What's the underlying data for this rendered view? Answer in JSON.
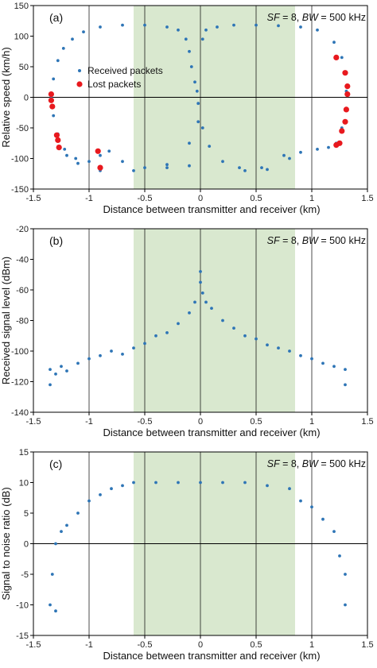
{
  "colors": {
    "received": "#2E75B6",
    "lost": "#E8191E",
    "shade": "#D9E8CF",
    "axis": "#000000",
    "grid": "#000000"
  },
  "chart_data": [
    {
      "type": "scatter",
      "panel_label": "(a)",
      "annotation": {
        "sf_var": "SF",
        "sf_rest": " = 8, ",
        "bw_var": "BW",
        "bw_rest": " = 500 kHz"
      },
      "xlabel": "Distance between transmitter and receiver (km)",
      "ylabel": "Relative speed (km/h)",
      "xlim": [
        -1.5,
        1.5
      ],
      "ylim": [
        -150,
        150
      ],
      "xticks": [
        -1.5,
        -1,
        -0.5,
        0,
        0.5,
        1,
        1.5
      ],
      "xtick_labels": [
        "-1.5",
        "-1",
        "-0.5",
        "0",
        "0.5",
        "1",
        "1.5"
      ],
      "yticks": [
        -150,
        -100,
        -50,
        0,
        50,
        100,
        150
      ],
      "ytick_labels": [
        "-150",
        "-100",
        "-50",
        "0",
        "50",
        "100",
        "150"
      ],
      "shaded_x": [
        -0.6,
        0.85
      ],
      "legend": {
        "placement": "left",
        "entries": [
          "Received packets",
          "Lost packets"
        ]
      },
      "series": [
        {
          "name": "Received packets",
          "marker": "small-dot",
          "points": [
            [
              -0.02,
              -10
            ],
            [
              -0.03,
              10
            ],
            [
              -0.05,
              25
            ],
            [
              -0.08,
              50
            ],
            [
              -0.1,
              75
            ],
            [
              -0.13,
              95
            ],
            [
              -0.2,
              110
            ],
            [
              -0.3,
              115
            ],
            [
              -0.5,
              118
            ],
            [
              -0.7,
              118
            ],
            [
              -0.9,
              115
            ],
            [
              -1.05,
              107
            ],
            [
              -1.15,
              95
            ],
            [
              -1.23,
              80
            ],
            [
              -1.28,
              60
            ],
            [
              -1.32,
              30
            ],
            [
              -1.34,
              0
            ],
            [
              -1.32,
              -30
            ],
            [
              -1.28,
              -60
            ],
            [
              -1.22,
              -85
            ],
            [
              -1.12,
              -100
            ],
            [
              -1.0,
              -105
            ],
            [
              -0.9,
              -95
            ],
            [
              -0.82,
              -88
            ],
            [
              -0.7,
              -105
            ],
            [
              -0.5,
              -115
            ],
            [
              -0.3,
              -115
            ],
            [
              -0.1,
              -112
            ],
            [
              0.02,
              -50
            ],
            [
              0.08,
              -80
            ],
            [
              0.2,
              -105
            ],
            [
              0.35,
              -115
            ],
            [
              0.55,
              -115
            ],
            [
              0.75,
              -95
            ],
            [
              0.9,
              -90
            ],
            [
              1.05,
              -85
            ],
            [
              1.15,
              -82
            ],
            [
              1.22,
              -75
            ],
            [
              1.27,
              -50
            ],
            [
              1.3,
              -20
            ],
            [
              1.31,
              10
            ],
            [
              1.3,
              40
            ],
            [
              1.27,
              65
            ],
            [
              1.2,
              90
            ],
            [
              1.05,
              110
            ],
            [
              0.9,
              115
            ],
            [
              0.7,
              117
            ],
            [
              0.5,
              118
            ],
            [
              0.3,
              118
            ],
            [
              0.15,
              115
            ],
            [
              0.05,
              110
            ],
            [
              0.02,
              95
            ],
            [
              -0.02,
              -40
            ],
            [
              -0.1,
              -75
            ],
            [
              -0.3,
              -110
            ],
            [
              -0.6,
              -120
            ],
            [
              -0.9,
              -120
            ],
            [
              -1.1,
              -108
            ],
            [
              -1.2,
              -95
            ],
            [
              0.4,
              -120
            ],
            [
              0.6,
              -118
            ],
            [
              0.8,
              -100
            ]
          ]
        },
        {
          "name": "Lost packets",
          "marker": "big-dot",
          "points": [
            [
              -1.34,
              5
            ],
            [
              -1.34,
              -5
            ],
            [
              -1.33,
              -15
            ],
            [
              -1.29,
              -62
            ],
            [
              -1.28,
              -70
            ],
            [
              -1.27,
              -82
            ],
            [
              -0.92,
              -88
            ],
            [
              -0.9,
              -115
            ],
            [
              1.22,
              65
            ],
            [
              1.3,
              40
            ],
            [
              1.32,
              18
            ],
            [
              1.32,
              5
            ],
            [
              1.31,
              -20
            ],
            [
              1.3,
              -40
            ],
            [
              1.27,
              -55
            ],
            [
              1.25,
              -75
            ],
            [
              1.22,
              -78
            ]
          ]
        }
      ]
    },
    {
      "type": "scatter",
      "panel_label": "(b)",
      "annotation": {
        "sf_var": "SF",
        "sf_rest": " = 8, ",
        "bw_var": "BW",
        "bw_rest": " = 500 kHz"
      },
      "xlabel": "Distance between transmitter and receiver (km)",
      "ylabel": "Received signal level (dBm)",
      "xlim": [
        -1.5,
        1.5
      ],
      "ylim": [
        -140,
        -20
      ],
      "xticks": [
        -1.5,
        -1,
        -0.5,
        0,
        0.5,
        1,
        1.5
      ],
      "xtick_labels": [
        "-1.5",
        "-1",
        "-0.5",
        "0",
        "0.5",
        "1",
        "1.5"
      ],
      "yticks": [
        -140,
        -120,
        -100,
        -80,
        -60,
        -40,
        -20
      ],
      "ytick_labels": [
        "-140",
        "-120",
        "-100",
        "-80",
        "-60",
        "-40",
        "-20"
      ],
      "shaded_x": [
        -0.6,
        0.85
      ],
      "series": [
        {
          "name": "",
          "marker": "small-dot",
          "points": [
            [
              -1.35,
              -122
            ],
            [
              -1.35,
              -112
            ],
            [
              -1.3,
              -115
            ],
            [
              -1.25,
              -110
            ],
            [
              -1.2,
              -113
            ],
            [
              -1.1,
              -108
            ],
            [
              -1.0,
              -105
            ],
            [
              -0.9,
              -103
            ],
            [
              -0.8,
              -100
            ],
            [
              -0.7,
              -102
            ],
            [
              -0.6,
              -98
            ],
            [
              -0.5,
              -95
            ],
            [
              -0.4,
              -90
            ],
            [
              -0.3,
              -88
            ],
            [
              -0.2,
              -82
            ],
            [
              -0.1,
              -75
            ],
            [
              -0.05,
              -68
            ],
            [
              0.0,
              -48
            ],
            [
              0.0,
              -55
            ],
            [
              0.02,
              -62
            ],
            [
              0.05,
              -68
            ],
            [
              0.1,
              -72
            ],
            [
              0.2,
              -80
            ],
            [
              0.3,
              -85
            ],
            [
              0.4,
              -90
            ],
            [
              0.5,
              -92
            ],
            [
              0.6,
              -96
            ],
            [
              0.7,
              -98
            ],
            [
              0.8,
              -100
            ],
            [
              0.9,
              -103
            ],
            [
              1.0,
              -105
            ],
            [
              1.1,
              -108
            ],
            [
              1.2,
              -110
            ],
            [
              1.3,
              -112
            ],
            [
              1.3,
              -122
            ]
          ]
        }
      ]
    },
    {
      "type": "scatter",
      "panel_label": "(c)",
      "annotation": {
        "sf_var": "SF",
        "sf_rest": " = 8, ",
        "bw_var": "BW",
        "bw_rest": " = 500 kHz"
      },
      "xlabel": "Distance between transmitter and receiver (km)",
      "ylabel": "Signal to noise ratio (dB)",
      "xlim": [
        -1.5,
        1.5
      ],
      "ylim": [
        -15,
        15
      ],
      "xticks": [
        -1.5,
        -1,
        -0.5,
        0,
        0.5,
        1,
        1.5
      ],
      "xtick_labels": [
        "-1.5",
        "-1",
        "-0.5",
        "0",
        "0.5",
        "1",
        "1.5"
      ],
      "yticks": [
        -15,
        -10,
        -5,
        0,
        5,
        10,
        15
      ],
      "ytick_labels": [
        "-15",
        "-10",
        "-5",
        "0",
        "5",
        "10",
        "15"
      ],
      "shaded_x": [
        -0.6,
        0.85
      ],
      "series": [
        {
          "name": "",
          "marker": "small-dot",
          "points": [
            [
              -1.35,
              -10
            ],
            [
              -1.33,
              -5
            ],
            [
              -1.3,
              -11
            ],
            [
              -1.3,
              0
            ],
            [
              -1.25,
              2
            ],
            [
              -1.2,
              3
            ],
            [
              -1.1,
              5
            ],
            [
              -1.0,
              7
            ],
            [
              -0.9,
              8
            ],
            [
              -0.8,
              9
            ],
            [
              -0.7,
              9.5
            ],
            [
              -0.6,
              10
            ],
            [
              -0.4,
              10
            ],
            [
              -0.2,
              10
            ],
            [
              0.0,
              10
            ],
            [
              0.2,
              10
            ],
            [
              0.4,
              10
            ],
            [
              0.6,
              9.5
            ],
            [
              0.8,
              9
            ],
            [
              0.9,
              7
            ],
            [
              1.0,
              6
            ],
            [
              1.1,
              4
            ],
            [
              1.2,
              2
            ],
            [
              1.25,
              -2
            ],
            [
              1.3,
              -5
            ],
            [
              1.3,
              -10
            ]
          ]
        }
      ]
    }
  ]
}
